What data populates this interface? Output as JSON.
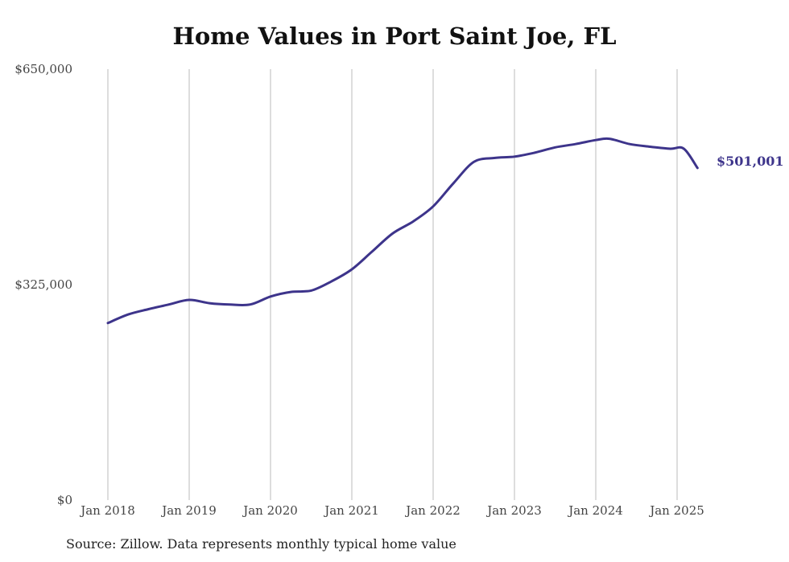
{
  "title": "Home Values in Port Saint Joe, FL",
  "source": "Source: Zillow. Data represents monthly typical home value",
  "colors": {
    "line": "#3d348b",
    "grid": "#bbbbbb",
    "text": "#444444"
  },
  "chart_data": {
    "type": "line",
    "title": "Home Values in Port Saint Joe, FL",
    "xlabel": "",
    "ylabel": "",
    "ylim": [
      0,
      650000
    ],
    "xlim": [
      "2018-01",
      "2025-04"
    ],
    "y_ticks": [
      0,
      325000,
      650000
    ],
    "y_tick_labels": [
      "$0",
      "$325,000",
      "$650,000"
    ],
    "x_ticks": [
      "2018-01",
      "2019-01",
      "2020-01",
      "2021-01",
      "2022-01",
      "2023-01",
      "2024-01",
      "2025-01"
    ],
    "x_tick_labels": [
      "Jan 2018",
      "Jan 2019",
      "Jan 2020",
      "Jan 2021",
      "Jan 2022",
      "Jan 2023",
      "Jan 2024",
      "Jan 2025"
    ],
    "grid": "vertical",
    "end_label": "$501,001",
    "series": [
      {
        "color": "#3d348b",
        "x": [
          "2018-01",
          "2018-04",
          "2018-07",
          "2018-10",
          "2019-01",
          "2019-04",
          "2019-07",
          "2019-10",
          "2020-01",
          "2020-04",
          "2020-07",
          "2020-10",
          "2021-01",
          "2021-04",
          "2021-07",
          "2021-10",
          "2022-01",
          "2022-04",
          "2022-07",
          "2022-10",
          "2023-01",
          "2023-04",
          "2023-07",
          "2023-10",
          "2024-01",
          "2024-03",
          "2024-06",
          "2024-09",
          "2024-12",
          "2025-02",
          "2025-04"
        ],
        "values": [
          267000,
          280000,
          288000,
          295000,
          302000,
          297000,
          295000,
          295000,
          307000,
          314000,
          316000,
          330000,
          348000,
          375000,
          402000,
          420000,
          443000,
          478000,
          510000,
          516000,
          518000,
          524000,
          532000,
          537000,
          543000,
          545000,
          537000,
          533000,
          530000,
          530000,
          501001
        ]
      }
    ]
  }
}
